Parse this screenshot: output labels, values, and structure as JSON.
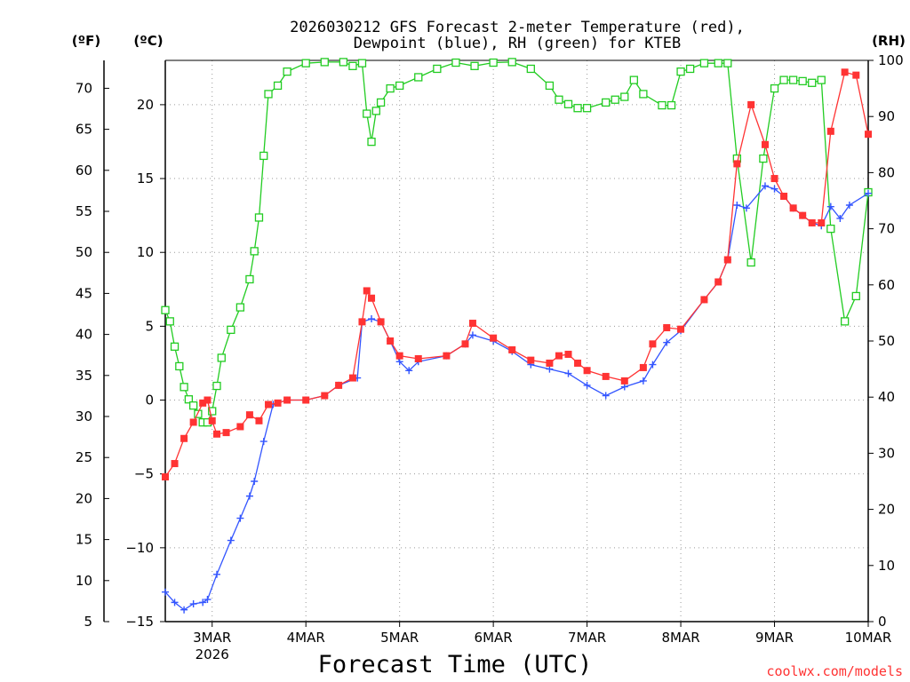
{
  "chart_data": {
    "type": "line",
    "title": "2026030212 GFS Forecast 2-meter Temperature (red),\nDewpoint (blue), RH (green) for KTEB",
    "xlabel": "Forecast Time (UTC)",
    "credit": "coolwx.com/models",
    "x_unit": "days since 2026-03-02 00:00 UTC",
    "xlim": [
      2.5,
      10.0
    ],
    "x_ticks": [
      3,
      4,
      5,
      6,
      7,
      8,
      9,
      10
    ],
    "x_tick_labels": [
      "3MAR",
      "4MAR",
      "5MAR",
      "6MAR",
      "7MAR",
      "8MAR",
      "9MAR",
      "10MAR"
    ],
    "x_sublabel": "2026",
    "axes": {
      "left_f": {
        "unit_label": "(ºF)",
        "range": [
          5,
          73.4
        ],
        "ticks": [
          5,
          10,
          15,
          20,
          25,
          30,
          35,
          40,
          45,
          50,
          55,
          60,
          65,
          70
        ]
      },
      "left_c": {
        "unit_label": "(ºC)",
        "range": [
          -15,
          23
        ],
        "ticks": [
          -15,
          -10,
          -5,
          0,
          5,
          10,
          15,
          20
        ]
      },
      "right_rh": {
        "unit_label": "(RH)",
        "range": [
          0,
          100
        ],
        "ticks": [
          0,
          10,
          20,
          30,
          40,
          50,
          60,
          70,
          80,
          90,
          100
        ]
      }
    },
    "grid": true,
    "series": [
      {
        "name": "Temperature",
        "axis": "left_c",
        "color": "#ff3333",
        "marker": "filled-square",
        "x": [
          2.5,
          2.6,
          2.7,
          2.8,
          2.9,
          2.95,
          3.0,
          3.05,
          3.15,
          3.3,
          3.4,
          3.5,
          3.6,
          3.7,
          3.8,
          4.0,
          4.2,
          4.35,
          4.5,
          4.6,
          4.65,
          4.7,
          4.8,
          4.9,
          5.0,
          5.2,
          5.5,
          5.7,
          5.78,
          6.0,
          6.2,
          6.4,
          6.6,
          6.7,
          6.8,
          6.9,
          7.0,
          7.2,
          7.4,
          7.6,
          7.7,
          7.85,
          8.0,
          8.25,
          8.4,
          8.5,
          8.6,
          8.75,
          8.9,
          9.0,
          9.1,
          9.2,
          9.3,
          9.4,
          9.5,
          9.6,
          9.75,
          9.87,
          10.0
        ],
        "values": [
          -5.2,
          -4.3,
          -2.6,
          -1.5,
          -0.2,
          0.0,
          -1.4,
          -2.3,
          -2.2,
          -1.8,
          -1.0,
          -1.4,
          -0.3,
          -0.2,
          0.0,
          0.0,
          0.3,
          1.0,
          1.5,
          5.3,
          7.4,
          6.9,
          5.3,
          4.0,
          3.0,
          2.8,
          3.0,
          3.8,
          5.2,
          4.2,
          3.4,
          2.7,
          2.5,
          3.0,
          3.1,
          2.5,
          2.0,
          1.6,
          1.3,
          2.2,
          3.8,
          4.9,
          4.8,
          6.8,
          8.0,
          9.5,
          16.0,
          20.0,
          17.3,
          15.0,
          13.8,
          13.0,
          12.5,
          12.0,
          12.0,
          18.2,
          22.2,
          22.0,
          18.0
        ]
      },
      {
        "name": "Dewpoint",
        "axis": "left_c",
        "color": "#3355ff",
        "marker": "plus",
        "x": [
          2.5,
          2.6,
          2.7,
          2.8,
          2.9,
          2.95,
          3.05,
          3.2,
          3.3,
          3.4,
          3.45,
          3.55,
          3.65,
          3.8,
          4.0,
          4.2,
          4.35,
          4.55,
          4.6,
          4.7,
          4.8,
          4.9,
          5.0,
          5.1,
          5.2,
          5.5,
          5.7,
          5.78,
          6.0,
          6.2,
          6.4,
          6.6,
          6.8,
          7.0,
          7.2,
          7.4,
          7.6,
          7.7,
          7.85,
          8.0,
          8.25,
          8.4,
          8.5,
          8.6,
          8.7,
          8.9,
          9.0,
          9.1,
          9.2,
          9.3,
          9.4,
          9.5,
          9.6,
          9.7,
          9.8,
          10.0
        ],
        "values": [
          -13.0,
          -13.7,
          -14.2,
          -13.8,
          -13.7,
          -13.5,
          -11.8,
          -9.5,
          -8.0,
          -6.5,
          -5.5,
          -2.8,
          -0.3,
          0.0,
          0.0,
          0.3,
          1.0,
          1.5,
          5.3,
          5.5,
          5.3,
          4.0,
          2.6,
          2.0,
          2.6,
          3.0,
          3.8,
          4.4,
          4.0,
          3.3,
          2.4,
          2.1,
          1.8,
          1.0,
          0.3,
          0.9,
          1.3,
          2.4,
          3.9,
          4.7,
          6.8,
          8.0,
          9.5,
          13.2,
          13.0,
          14.5,
          14.3,
          13.8,
          13.0,
          12.5,
          12.0,
          11.8,
          13.1,
          12.3,
          13.2,
          14.0
        ]
      },
      {
        "name": "RH",
        "axis": "right_rh",
        "color": "#22cc22",
        "marker": "open-square",
        "x": [
          2.5,
          2.55,
          2.6,
          2.65,
          2.7,
          2.75,
          2.8,
          2.85,
          2.9,
          2.95,
          3.0,
          3.05,
          3.1,
          3.2,
          3.3,
          3.4,
          3.45,
          3.5,
          3.55,
          3.6,
          3.7,
          3.8,
          4.0,
          4.2,
          4.4,
          4.5,
          4.6,
          4.65,
          4.7,
          4.75,
          4.8,
          4.9,
          5.0,
          5.2,
          5.4,
          5.6,
          5.8,
          6.0,
          6.2,
          6.4,
          6.6,
          6.7,
          6.8,
          6.9,
          7.0,
          7.2,
          7.3,
          7.4,
          7.5,
          7.6,
          7.8,
          7.9,
          8.0,
          8.1,
          8.25,
          8.4,
          8.5,
          8.6,
          8.75,
          8.88,
          9.0,
          9.1,
          9.2,
          9.3,
          9.4,
          9.5,
          9.6,
          9.75,
          9.87,
          10.0
        ],
        "values": [
          55.5,
          53.5,
          49.0,
          45.5,
          41.8,
          39.6,
          38.5,
          37.0,
          35.5,
          35.5,
          37.5,
          42.0,
          47.0,
          52.0,
          56.0,
          61.0,
          66.0,
          72.0,
          83.0,
          94.0,
          95.5,
          98.0,
          99.5,
          99.7,
          99.7,
          99.0,
          99.5,
          90.5,
          85.5,
          91.0,
          92.5,
          95.0,
          95.5,
          97.0,
          98.5,
          99.6,
          99.0,
          99.6,
          99.7,
          98.5,
          95.5,
          93.0,
          92.2,
          91.5,
          91.5,
          92.5,
          93.0,
          93.5,
          96.5,
          94.0,
          92.0,
          92.0,
          98.0,
          98.5,
          99.5,
          99.5,
          99.5,
          82.5,
          64.0,
          82.5,
          95.0,
          96.5,
          96.5,
          96.3,
          96.0,
          96.5,
          70.0,
          53.5,
          58.0,
          76.5
        ]
      }
    ]
  }
}
